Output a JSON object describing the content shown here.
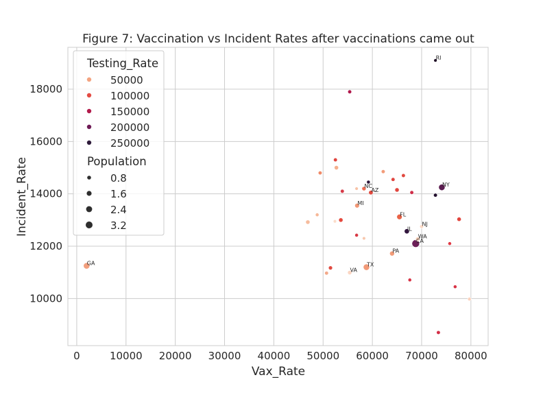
{
  "chart_data": {
    "type": "scatter",
    "title": "Figure 7: Vaccination vs Incident Rates after vaccinations came out",
    "xlabel": "Vax_Rate",
    "ylabel": "Incident_Rate",
    "xlim": [
      -1800,
      83500
    ],
    "ylim": [
      8200,
      19600
    ],
    "xticks": [
      0,
      10000,
      20000,
      30000,
      40000,
      50000,
      60000,
      70000,
      80000
    ],
    "yticks": [
      10000,
      12000,
      14000,
      16000,
      18000
    ],
    "grid": true,
    "legend": {
      "placement": "top-left",
      "hue_title": "Testing_Rate",
      "hue_entries": [
        {
          "label": "50000",
          "color": "#f3a481"
        },
        {
          "label": "100000",
          "color": "#e44c44"
        },
        {
          "label": "150000",
          "color": "#b21a4a"
        },
        {
          "label": "200000",
          "color": "#6e1a55"
        },
        {
          "label": "250000",
          "color": "#2e1a3a"
        }
      ],
      "size_title": "Population",
      "size_entries": [
        "0.8",
        "1.6",
        "2.4",
        "3.2"
      ]
    },
    "points": [
      {
        "x": 2000,
        "y": 11250,
        "c": "#f29f7e",
        "s": 2.2,
        "label": "GA"
      },
      {
        "x": 72800,
        "y": 19100,
        "c": "#1f1027",
        "s": 0.6,
        "label": "RI"
      },
      {
        "x": 55400,
        "y": 17900,
        "c": "#b0184b",
        "s": 0.8
      },
      {
        "x": 52500,
        "y": 15300,
        "c": "#e0443e",
        "s": 0.8
      },
      {
        "x": 52700,
        "y": 15000,
        "c": "#f5b08e",
        "s": 1.0
      },
      {
        "x": 49400,
        "y": 14800,
        "c": "#f08a68",
        "s": 0.8
      },
      {
        "x": 62200,
        "y": 14850,
        "c": "#f29c7a",
        "s": 0.8
      },
      {
        "x": 66300,
        "y": 14700,
        "c": "#e14a40",
        "s": 0.8
      },
      {
        "x": 64200,
        "y": 14550,
        "c": "#e0453f",
        "s": 0.8
      },
      {
        "x": 59200,
        "y": 14450,
        "c": "#2a1338",
        "s": 0.7
      },
      {
        "x": 56800,
        "y": 14200,
        "c": "#f7c2a6",
        "s": 0.6
      },
      {
        "x": 58300,
        "y": 14200,
        "c": "#ed6f55",
        "s": 1.0,
        "label": "NC"
      },
      {
        "x": 59700,
        "y": 14050,
        "c": "#e14a40",
        "s": 1.1,
        "label": "AZ"
      },
      {
        "x": 53900,
        "y": 14100,
        "c": "#d63b48",
        "s": 0.8
      },
      {
        "x": 65000,
        "y": 14150,
        "c": "#e1473f",
        "s": 1.0
      },
      {
        "x": 68000,
        "y": 14050,
        "c": "#cf2f4a",
        "s": 0.8
      },
      {
        "x": 74100,
        "y": 14250,
        "c": "#5b1d50",
        "s": 2.2,
        "label": "NY"
      },
      {
        "x": 72800,
        "y": 13950,
        "c": "#251230",
        "s": 0.8
      },
      {
        "x": 56900,
        "y": 13550,
        "c": "#f29876",
        "s": 1.2,
        "label": "MI"
      },
      {
        "x": 48800,
        "y": 13200,
        "c": "#f6b898",
        "s": 0.7
      },
      {
        "x": 46900,
        "y": 12920,
        "c": "#f6bc9e",
        "s": 1.0
      },
      {
        "x": 52400,
        "y": 12950,
        "c": "#fbdcc9",
        "s": 0.6
      },
      {
        "x": 53600,
        "y": 13000,
        "c": "#e5493d",
        "s": 1.0
      },
      {
        "x": 65500,
        "y": 13120,
        "c": "#ea6448",
        "s": 1.6,
        "label": "FL"
      },
      {
        "x": 77600,
        "y": 13030,
        "c": "#e2463e",
        "s": 1.0
      },
      {
        "x": 70000,
        "y": 12750,
        "c": "#fbd9c6",
        "s": 0.8,
        "label": "NJ"
      },
      {
        "x": 67000,
        "y": 12570,
        "c": "#33173f",
        "s": 1.4,
        "label": "IL"
      },
      {
        "x": 56800,
        "y": 12420,
        "c": "#d83a45",
        "s": 0.7
      },
      {
        "x": 58300,
        "y": 12300,
        "c": "#f8c7ad",
        "s": 0.6
      },
      {
        "x": 68800,
        "y": 12100,
        "c": "#6c1f58",
        "s": 3.2,
        "label": "CA"
      },
      {
        "x": 69200,
        "y": 12270,
        "c": "#f9d0b9",
        "s": 1.0,
        "label": "WA"
      },
      {
        "x": 75700,
        "y": 12100,
        "c": "#e03a45",
        "s": 0.7
      },
      {
        "x": 64000,
        "y": 11720,
        "c": "#f29c79",
        "s": 1.3,
        "label": "PA"
      },
      {
        "x": 58800,
        "y": 11200,
        "c": "#f29a78",
        "s": 2.2,
        "label": "TX"
      },
      {
        "x": 51500,
        "y": 11170,
        "c": "#e14a40",
        "s": 0.9
      },
      {
        "x": 50700,
        "y": 10970,
        "c": "#f3a98a",
        "s": 0.8
      },
      {
        "x": 55400,
        "y": 10990,
        "c": "#fbd6c3",
        "s": 1.0,
        "label": "VA"
      },
      {
        "x": 67600,
        "y": 10710,
        "c": "#d83447",
        "s": 0.7
      },
      {
        "x": 76800,
        "y": 10450,
        "c": "#d83447",
        "s": 0.7
      },
      {
        "x": 79700,
        "y": 9980,
        "c": "#fbd2bd",
        "s": 0.7
      },
      {
        "x": 73400,
        "y": 8700,
        "c": "#d32f47",
        "s": 0.8
      }
    ]
  }
}
